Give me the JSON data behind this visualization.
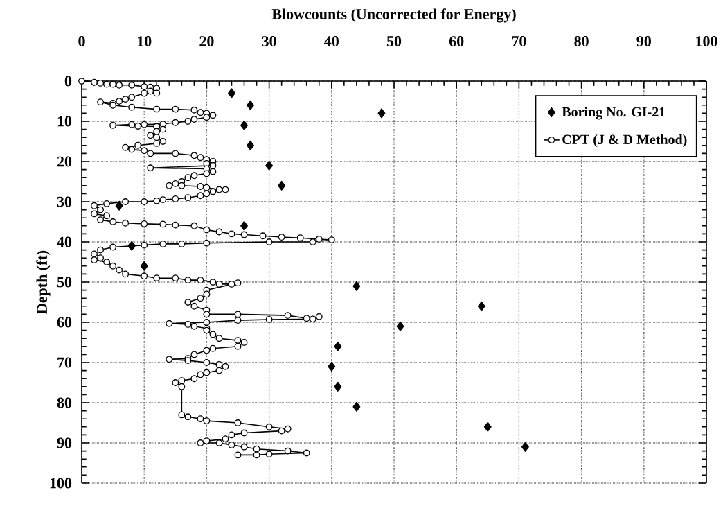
{
  "chart_data": {
    "type": "scatter",
    "xlabel": "Blowcounts (Uncorrected for Energy)",
    "ylabel": "Depth (ft)",
    "xlim": [
      0,
      100
    ],
    "ylim": [
      100,
      0
    ],
    "xticks": [
      0,
      10,
      20,
      30,
      40,
      50,
      60,
      70,
      80,
      90,
      100
    ],
    "yticks": [
      0,
      10,
      20,
      30,
      40,
      50,
      60,
      70,
      80,
      90,
      100
    ],
    "grid": true,
    "legend": "top right",
    "series": [
      {
        "name": "Boring No. GI-21",
        "type": "scatter",
        "marker": "diamond",
        "color": "#000000",
        "x": [
          24,
          27,
          48,
          26,
          27,
          30,
          32,
          6,
          26,
          8,
          10,
          44,
          64,
          51,
          41,
          40,
          41,
          44,
          65,
          71
        ],
        "values": [
          3,
          6,
          8,
          11,
          16,
          21,
          26,
          31,
          36,
          41,
          46,
          51,
          56,
          61,
          66,
          71,
          76,
          81,
          86,
          91
        ]
      },
      {
        "name": "CPT (J & D Method)",
        "type": "line",
        "marker": "circle",
        "line_style": "solid",
        "color": "#000000",
        "x": [
          0,
          2,
          3,
          4,
          5,
          6,
          8,
          10,
          11,
          12,
          11,
          12,
          10,
          8,
          7,
          6,
          5,
          3,
          5,
          8,
          12,
          15,
          18,
          19,
          20,
          21,
          20,
          18,
          17,
          15,
          13,
          10,
          8,
          5,
          9,
          12,
          13,
          12,
          11,
          12,
          13,
          12,
          9,
          7,
          8,
          10,
          11,
          15,
          18,
          19,
          20,
          21,
          20,
          21,
          11,
          20,
          21,
          20,
          18,
          17,
          16,
          15,
          14,
          16,
          19,
          20,
          22,
          23,
          21,
          20,
          19,
          17,
          15,
          13,
          12,
          10,
          7,
          4,
          2,
          3,
          2,
          4,
          3,
          5,
          7,
          10,
          13,
          15,
          18,
          20,
          22,
          24,
          26,
          29,
          32,
          35,
          38,
          40,
          37,
          30,
          20,
          16,
          13,
          10,
          8,
          5,
          3,
          2,
          3,
          2,
          4,
          5,
          6,
          7,
          10,
          12,
          15,
          17,
          19,
          21,
          22,
          24,
          25,
          20,
          20,
          19,
          17,
          18,
          20,
          20,
          25,
          33,
          36,
          38,
          37,
          30,
          25,
          20,
          14,
          17,
          18,
          20,
          20,
          21,
          22,
          25,
          26,
          25,
          21,
          20,
          18,
          17,
          14,
          17,
          20,
          22,
          23,
          22,
          20,
          19,
          18,
          16,
          15,
          16,
          16,
          17,
          19,
          20,
          25,
          30,
          33,
          32,
          26,
          24,
          23,
          20,
          19,
          22,
          24,
          26,
          28,
          33,
          36,
          30,
          28,
          25
        ],
        "values": [
          0,
          0.3,
          0.5,
          0.8,
          0.8,
          1,
          1,
          1.4,
          1.5,
          1.8,
          2.5,
          3,
          3,
          4,
          4.5,
          5,
          5.5,
          5.2,
          6,
          6.5,
          7,
          7,
          7.2,
          7.8,
          8,
          8.5,
          9,
          9.5,
          10,
          10.3,
          10.7,
          10.8,
          10.8,
          11,
          11.2,
          11.3,
          12,
          12.5,
          13.5,
          14,
          15,
          15.5,
          16,
          16.5,
          17,
          17.3,
          18,
          18,
          18.5,
          19,
          19.5,
          20,
          20.5,
          21,
          21.6,
          21.8,
          22.5,
          23,
          23.5,
          24,
          25,
          25.5,
          26,
          26,
          26.2,
          26.5,
          27,
          27,
          27.5,
          28,
          28.5,
          29,
          29.3,
          29.5,
          29.8,
          30,
          30,
          30.5,
          31,
          32,
          33,
          33.5,
          34.5,
          35,
          35.3,
          35.5,
          35.6,
          35.8,
          36,
          37,
          37.5,
          38,
          38.2,
          38.5,
          38.8,
          39,
          39.3,
          39.5,
          40,
          40,
          40.3,
          40.5,
          40.5,
          40.8,
          41,
          41.3,
          42,
          43,
          44,
          44.5,
          45,
          46,
          47,
          48,
          48.5,
          49,
          49,
          49.5,
          49.5,
          50,
          50.5,
          50.5,
          50.2,
          52,
          53,
          54,
          55,
          56,
          57,
          58,
          58,
          58.3,
          59,
          58.6,
          59.2,
          59.3,
          59.5,
          60,
          60.3,
          60.5,
          61,
          61.5,
          62,
          63,
          64,
          64.5,
          65,
          66,
          66.5,
          67,
          68,
          69,
          69.2,
          69.5,
          70,
          70.5,
          71,
          72,
          72.5,
          73,
          74,
          74.5,
          75,
          76,
          83,
          83.5,
          84,
          84.5,
          85,
          86,
          86.5,
          87,
          87.5,
          88,
          89,
          89.5,
          90,
          90,
          90.5,
          91,
          91.5,
          92,
          92.5,
          92.8,
          93,
          93
        ]
      }
    ]
  }
}
